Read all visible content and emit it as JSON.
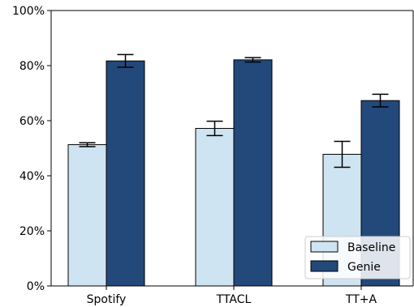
{
  "chart_data": {
    "type": "bar",
    "categories": [
      "Spotify",
      "TTACL",
      "TT+A"
    ],
    "series": [
      {
        "name": "Baseline",
        "values": [
          51.3,
          57.2,
          47.8
        ],
        "error": [
          0.7,
          2.6,
          4.7
        ],
        "color": "#cfe4f2"
      },
      {
        "name": "Genie",
        "values": [
          81.7,
          82.1,
          67.3
        ],
        "error": [
          2.3,
          0.8,
          2.3
        ],
        "color": "#23497a"
      }
    ],
    "ylim": [
      0,
      100
    ],
    "yticks": [
      0,
      20,
      40,
      60,
      80,
      100
    ],
    "ytick_labels": [
      "0%",
      "20%",
      "40%",
      "60%",
      "80%",
      "100%"
    ],
    "title": "",
    "xlabel": "",
    "ylabel": "",
    "grid": false,
    "legend_position": "lower-right"
  }
}
